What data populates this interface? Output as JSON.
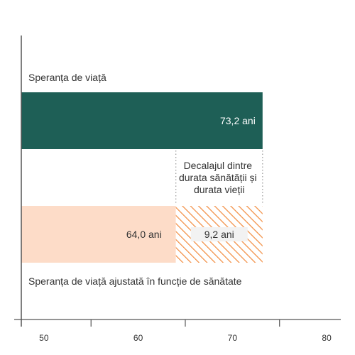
{
  "chart_data": {
    "type": "bar",
    "orientation": "horizontal",
    "xlim": [
      47.6,
      81.5
    ],
    "x_ticks": [
      50,
      60,
      70,
      80
    ],
    "x_tick_labels": [
      "50",
      "60",
      "70",
      "80"
    ],
    "series": [
      {
        "name": "Speranța de viață",
        "value": 73.2,
        "value_label": "73,2 ani",
        "color": "#1e5f56"
      },
      {
        "name": "Speranța de viață ajustată în funcție de sănătate",
        "value": 64.0,
        "value_label": "64,0 ani",
        "color": "#fddcc8"
      }
    ],
    "gap": {
      "start": 64.0,
      "end": 73.2,
      "value": 9.2,
      "value_label": "9,2 ani",
      "label_lines": [
        "Decalajul dintre",
        "durata sănătății și",
        "durata vieții"
      ],
      "color": "#f28a3c"
    },
    "colors": {
      "axis": "#555555",
      "text": "#333333",
      "guide": "#999999"
    }
  }
}
